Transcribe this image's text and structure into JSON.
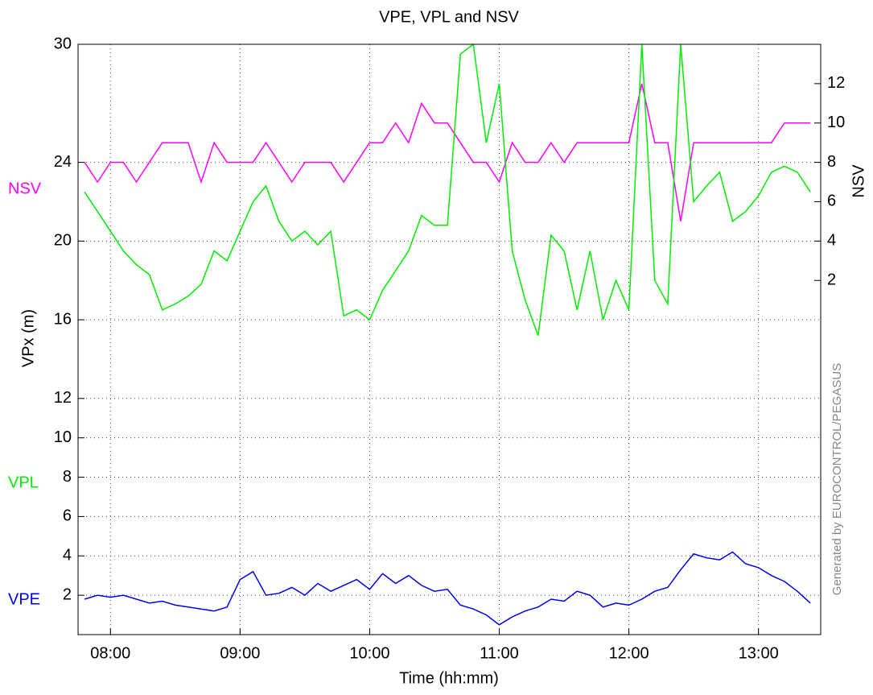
{
  "chart_data": {
    "type": "line",
    "title": "VPE, VPL and NSV",
    "x_label": "Time (hh:mm)",
    "y_label": "VPx  (m)",
    "y2_label": "NSV",
    "watermark": "Generated by EUROCONTROL/PEGASUS",
    "grid": true,
    "xlim": [
      7.75,
      13.48
    ],
    "xticks": [
      {
        "value": 8,
        "label": "08:00"
      },
      {
        "value": 9,
        "label": "09:00"
      },
      {
        "value": 10,
        "label": "10:00"
      },
      {
        "value": 11,
        "label": "11:00"
      },
      {
        "value": 12,
        "label": "12:00"
      },
      {
        "value": 13,
        "label": "13:00"
      }
    ],
    "ylim": [
      0,
      30
    ],
    "yticks": [
      2,
      4,
      6,
      8,
      10,
      12,
      16,
      20,
      24,
      30
    ],
    "y2lim": [
      -16,
      14
    ],
    "y2ticks": [
      2,
      4,
      6,
      8,
      10,
      12
    ],
    "x": [
      7.8,
      7.9,
      8.0,
      8.1,
      8.2,
      8.3,
      8.4,
      8.5,
      8.6,
      8.7,
      8.8,
      8.9,
      9.0,
      9.1,
      9.2,
      9.3,
      9.4,
      9.5,
      9.6,
      9.7,
      9.8,
      9.9,
      10.0,
      10.1,
      10.2,
      10.3,
      10.4,
      10.5,
      10.6,
      10.7,
      10.8,
      10.9,
      11.0,
      11.1,
      11.2,
      11.3,
      11.4,
      11.5,
      11.6,
      11.7,
      11.8,
      11.9,
      12.0,
      12.1,
      12.2,
      12.3,
      12.4,
      12.5,
      12.6,
      12.7,
      12.8,
      12.9,
      13.0,
      13.1,
      13.2,
      13.3,
      13.4
    ],
    "series": [
      {
        "name": "NSV",
        "color": "#ff00ff",
        "axis": "y2",
        "values": [
          8,
          7,
          8,
          8,
          7,
          8,
          9,
          9,
          9,
          7,
          9,
          8,
          8,
          8,
          9,
          8,
          7,
          8,
          8,
          8,
          7,
          8,
          9,
          9,
          10,
          9,
          11,
          10,
          10,
          9,
          8,
          8,
          7,
          9,
          8,
          8,
          9,
          8,
          9,
          9,
          9,
          9,
          9,
          12,
          9,
          9,
          5,
          9,
          9,
          9,
          9,
          9,
          9,
          9,
          10,
          10,
          10
        ]
      },
      {
        "name": "VPL",
        "color": "#00ee00",
        "values": [
          22.5,
          21.5,
          20.5,
          19.5,
          18.8,
          18.3,
          16.5,
          16.8,
          17.2,
          17.8,
          19.5,
          19,
          20.5,
          22,
          22.8,
          21,
          20,
          20.5,
          19.8,
          20.5,
          16.2,
          16.5,
          16,
          17.5,
          18.5,
          19.5,
          21.3,
          20.8,
          20.8,
          29.5,
          30,
          25,
          28,
          19.5,
          17,
          15.2,
          20.3,
          19.5,
          16.5,
          19.5,
          16,
          18,
          16.5,
          30,
          18,
          16.8,
          30,
          22,
          22.8,
          23.5,
          21,
          21.5,
          22.3,
          23.5,
          23.8,
          23.5,
          22.5
        ]
      },
      {
        "name": "VPE",
        "color": "#0000ee",
        "values": [
          1.8,
          2.0,
          1.9,
          2.0,
          1.8,
          1.6,
          1.7,
          1.5,
          1.4,
          1.3,
          1.2,
          1.4,
          2.8,
          3.2,
          2.0,
          2.1,
          2.4,
          2.0,
          2.6,
          2.2,
          2.5,
          2.8,
          2.3,
          3.1,
          2.6,
          3.0,
          2.5,
          2.2,
          2.3,
          1.5,
          1.3,
          1.0,
          0.5,
          0.9,
          1.2,
          1.4,
          1.8,
          1.7,
          2.2,
          2.0,
          1.4,
          1.6,
          1.5,
          1.8,
          2.2,
          2.4,
          3.3,
          4.1,
          3.9,
          3.8,
          4.2,
          3.6,
          3.4,
          3.0,
          2.7,
          2.2,
          1.6
        ]
      }
    ]
  }
}
